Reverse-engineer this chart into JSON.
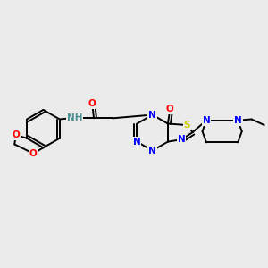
{
  "bg_color": "#ebebeb",
  "figsize": [
    3.0,
    3.0
  ],
  "dpi": 100,
  "atom_colors": {
    "C": "#000000",
    "N": "#0000ff",
    "O": "#ff0000",
    "S": "#cccc00",
    "NH": "#4a9090"
  },
  "bond_color": "#000000",
  "bond_width": 1.4,
  "font_size": 7.5
}
